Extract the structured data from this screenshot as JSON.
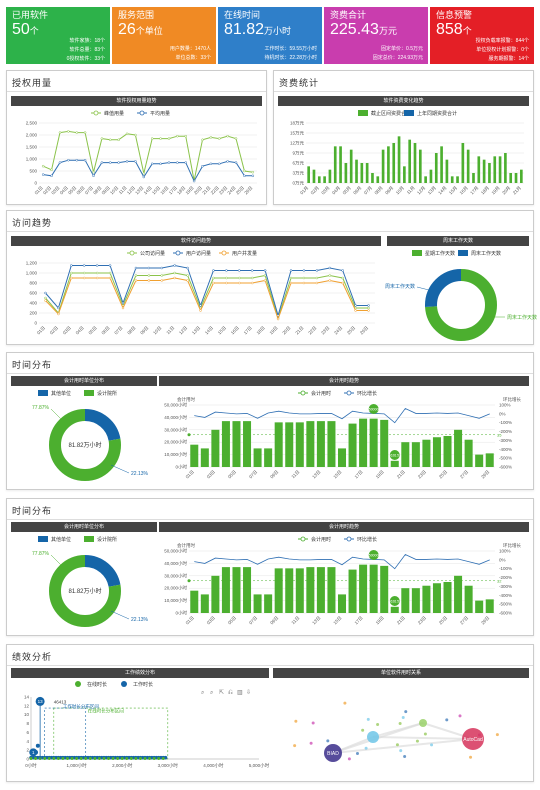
{
  "kpis": [
    {
      "title": "已用软件",
      "value": "50",
      "unit": "个",
      "color": "#2db24a",
      "rows": [
        "软件家族：18个",
        "软件总量：83个",
        "0授权软件：33个"
      ]
    },
    {
      "title": "服务范围",
      "value": "26",
      "unit": "个单位",
      "color": "#f08a24",
      "rows": [
        "用户数量：1470人",
        "单位总数：33个"
      ]
    },
    {
      "title": "在线时间",
      "value": "81.82",
      "unit": "万小时",
      "color": "#2f7fc9",
      "rows": [
        "工作时长：59.55万小时",
        "待机时长：22.28万小时"
      ]
    },
    {
      "title": "资费合计",
      "value": "225.43",
      "unit": "万元",
      "color": "#c93dae",
      "rows": [
        "固定单价：0.5万元",
        "固定总价：224.93万元"
      ]
    },
    {
      "title": "信息预警",
      "value": "858",
      "unit": "个",
      "color": "#e41f26",
      "rows": [
        "授权负载率报警：844个",
        "单位授权计划报警：0个",
        "服务期报警：14个"
      ]
    }
  ],
  "sections": {
    "license_usage": "授权用量",
    "fee_stats": "资费统计",
    "visit_trend": "访问趋势",
    "time_dist_1": "时间分布",
    "time_dist_2": "时间分布",
    "perf": "绩效分析"
  },
  "chart_data": [
    {
      "type": "line",
      "id": "license",
      "title": "软件授权用量趋势",
      "series": [
        {
          "name": "峰值用量",
          "color": "#8bc34a",
          "values": [
            700,
            550,
            2100,
            2150,
            2100,
            2100,
            450,
            1850,
            1800,
            1800,
            2050,
            2000,
            400,
            1850,
            1850,
            1850,
            1950,
            1950,
            100,
            1800,
            1900,
            1850,
            1950,
            1850,
            500,
            450
          ]
        },
        {
          "name": "平均用量",
          "color": "#2f6fb3",
          "values": [
            350,
            300,
            850,
            950,
            950,
            950,
            300,
            850,
            850,
            850,
            900,
            900,
            250,
            800,
            800,
            850,
            850,
            850,
            80,
            700,
            800,
            800,
            900,
            850,
            300,
            300
          ]
        }
      ],
      "ylim": [
        0,
        2500
      ],
      "yticks": [
        "0",
        "500",
        "1,000",
        "1,500",
        "2,000",
        "2,500"
      ]
    },
    {
      "type": "bar",
      "id": "fee",
      "title": "软件资费变化趋势",
      "series": [
        {
          "name": "截止区间资费合计",
          "color": "#4caf2f"
        },
        {
          "name": "上年同期资费合计",
          "color": "#1565a8"
        }
      ],
      "values": [
        5,
        4,
        2,
        2,
        4,
        11,
        11,
        6,
        10,
        7,
        6,
        6,
        3,
        2,
        10,
        11,
        12,
        14,
        5,
        13,
        12,
        10,
        2,
        4,
        9,
        11,
        7,
        2,
        2,
        12,
        10,
        3,
        8,
        7,
        6,
        8,
        8,
        9,
        3,
        3,
        4
      ],
      "ylim": [
        0,
        18
      ],
      "yticks": [
        "0万元",
        "3万元",
        "6万元",
        "9万元",
        "12万元",
        "15万元",
        "18万元"
      ]
    },
    {
      "type": "line",
      "id": "visit",
      "title": "软件访问趋势",
      "series": [
        {
          "name": "公司访问量",
          "color": "#8bc34a",
          "values": [
            500,
            200,
            1000,
            1000,
            1000,
            1000,
            350,
            950,
            950,
            950,
            1000,
            950,
            300,
            900,
            900,
            900,
            900,
            950,
            100,
            900,
            900,
            900,
            950,
            900,
            300,
            300
          ]
        },
        {
          "name": "用户访问量",
          "color": "#2f6fb3",
          "values": [
            600,
            300,
            1150,
            1150,
            1150,
            1150,
            400,
            1100,
            1100,
            1100,
            1150,
            1100,
            350,
            1050,
            1050,
            1050,
            1050,
            1050,
            150,
            1050,
            1050,
            1050,
            1100,
            1050,
            350,
            350
          ]
        },
        {
          "name": "用户并发量",
          "color": "#f0a030",
          "values": [
            450,
            180,
            900,
            900,
            900,
            900,
            300,
            850,
            850,
            850,
            900,
            850,
            250,
            800,
            800,
            800,
            800,
            850,
            80,
            800,
            800,
            800,
            850,
            800,
            250,
            250
          ]
        }
      ],
      "ylim": [
        0,
        1200
      ],
      "yticks": [
        "0",
        "200",
        "400",
        "600",
        "800",
        "1,000",
        "1,200"
      ]
    },
    {
      "type": "pie",
      "id": "workday",
      "title": "周末工作天数",
      "labels": [
        "周末工作天数",
        "周末工作天数"
      ],
      "legend": [
        "星期工作天数",
        "周末工作天数"
      ],
      "values": [
        74,
        26
      ],
      "colors": [
        "#4caf2f",
        "#1565a8"
      ]
    },
    {
      "type": "pie",
      "id": "unit1",
      "title": "会计用时单位分布",
      "legend": [
        "其他单位",
        "设计院所"
      ],
      "values": [
        22.13,
        77.87
      ],
      "labels": [
        "22.13%",
        "77.87%"
      ],
      "center": "81.82万小时",
      "colors": [
        "#1565a8",
        "#4caf2f"
      ]
    },
    {
      "type": "bar",
      "id": "time1",
      "title": "会计用时趋势",
      "ylabel": "会计用时",
      "y2label": "环比增长",
      "series": [
        {
          "name": "会计用时",
          "color": "#4caf2f"
        },
        {
          "name": "环比增长",
          "color": "#2f6fb3"
        }
      ],
      "values": [
        18000,
        15000,
        30000,
        37000,
        37000,
        37000,
        15000,
        15000,
        36000,
        36000,
        36000,
        37000,
        37000,
        37000,
        15000,
        35000,
        39000,
        39000,
        38000,
        5000,
        20000,
        20000,
        22000,
        24000,
        25000,
        30000,
        22000,
        10000,
        11000
      ],
      "line": [
        -20,
        -40,
        20,
        10,
        0,
        5,
        -50,
        10,
        30,
        10,
        0,
        0,
        5,
        5,
        -55,
        30,
        10,
        5,
        0,
        -100,
        60,
        5,
        5,
        10,
        5,
        10,
        -20,
        -50,
        0
      ],
      "ylim": [
        0,
        50000
      ],
      "yticks": [
        "0小时",
        "10,000小时",
        "20,000小时",
        "30,000小时",
        "40,000小时",
        "50,000小时"
      ],
      "y2ticks": [
        "-600%",
        "-500%",
        "-400%",
        "-300%",
        "-200%",
        "-100%",
        "0%",
        "100%"
      ],
      "pins": [
        "35",
        "50000",
        "3626.53"
      ]
    },
    {
      "type": "pie",
      "id": "unit2",
      "title": "会计用时单位分布",
      "legend": [
        "其他单位",
        "设计院所"
      ],
      "values": [
        22.13,
        77.87
      ],
      "labels": [
        "22.13%",
        "77.87%"
      ],
      "center": "81.82万小时",
      "colors": [
        "#1565a8",
        "#4caf2f"
      ]
    },
    {
      "type": "bar",
      "id": "time2",
      "title": "会计用时趋势",
      "ylabel": "会计用时",
      "y2label": "环比增长",
      "series": [
        {
          "name": "会计用时",
          "color": "#4caf2f"
        },
        {
          "name": "环比增长",
          "color": "#2f6fb3"
        }
      ],
      "values": [
        18000,
        15000,
        30000,
        37000,
        37000,
        37000,
        15000,
        15000,
        36000,
        36000,
        36000,
        37000,
        37000,
        37000,
        15000,
        35000,
        39000,
        39000,
        38000,
        5000,
        20000,
        20000,
        22000,
        24000,
        25000,
        30000,
        22000,
        10000,
        11000
      ],
      "line": [
        -20,
        -40,
        20,
        10,
        0,
        5,
        -50,
        10,
        30,
        10,
        0,
        0,
        5,
        5,
        -55,
        30,
        10,
        5,
        0,
        -100,
        60,
        5,
        5,
        10,
        5,
        10,
        -20,
        -50,
        0
      ],
      "ylim": [
        0,
        50000
      ],
      "yticks": [
        "0小时",
        "10,000小时",
        "20,000小时",
        "30,000小时",
        "40,000小时",
        "50,000小时"
      ],
      "y2ticks": [
        "-600%",
        "-500%",
        "-400%",
        "-300%",
        "-200%",
        "-100%",
        "0%",
        "100%"
      ],
      "pins": [
        "32",
        "50000",
        "3626.53"
      ]
    },
    {
      "type": "scatter",
      "id": "perf",
      "title": "工作绩效分布",
      "legend": [
        "在线时长",
        "工作时长"
      ],
      "xticks": [
        "0小时",
        "1,000小时",
        "2,000小时",
        "3,000小时",
        "4,000小时",
        "5,000小时"
      ],
      "yticks": [
        "0",
        "2",
        "4",
        "6",
        "8",
        "10",
        "12",
        "14"
      ],
      "ylim": [
        0,
        14
      ],
      "xlim": [
        0,
        5000
      ],
      "annot": [
        "工作时长分布区间",
        "在线时长分布区间"
      ],
      "bubble": "13",
      "bubble2": "1",
      "peak": "46413"
    },
    {
      "type": "other",
      "id": "relation",
      "title": "单位软件用时关系",
      "nodes": [
        {
          "label": "BIAD",
          "color": "#3a2d8a",
          "size": 9
        },
        {
          "label": "AutoCad",
          "color": "#d6335b",
          "size": 11
        },
        {
          "label": "",
          "color": "#6ec6e8",
          "size": 6
        },
        {
          "label": "",
          "color": "#9ad16a",
          "size": 4
        }
      ]
    }
  ],
  "toolbar": [
    "⌕",
    "⌕",
    "⇱",
    "⎌",
    "▥",
    "⇩"
  ]
}
